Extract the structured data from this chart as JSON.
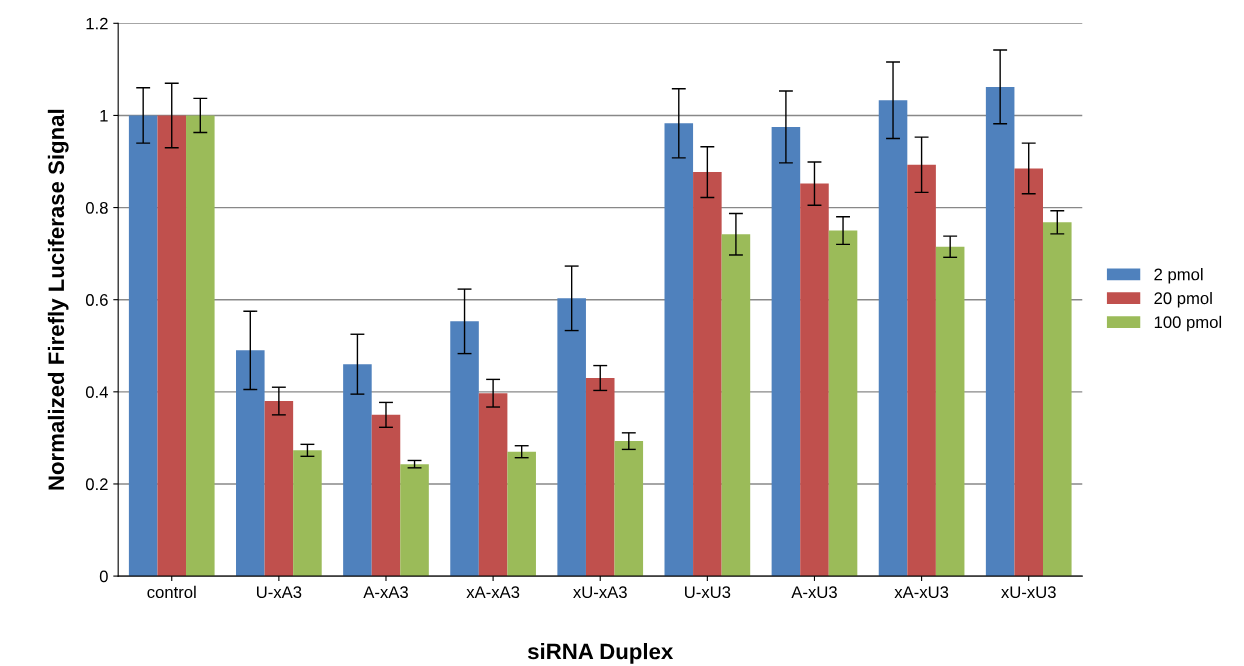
{
  "chart_data": {
    "type": "bar",
    "xlabel": "siRNA Duplex",
    "ylabel": "Normalized Firefly Luciferase Signal",
    "categories": [
      "control",
      "U-xA3",
      "A-xA3",
      "xA-xA3",
      "xU-xA3",
      "U-xU3",
      "A-xU3",
      "xA-xU3",
      "xU-xU3"
    ],
    "series": [
      {
        "name": "2 pmol",
        "color": "#4f81bd",
        "values": [
          1.0,
          0.49,
          0.46,
          0.553,
          0.603,
          0.983,
          0.975,
          1.033,
          1.062
        ],
        "errors": [
          0.06,
          0.085,
          0.065,
          0.07,
          0.07,
          0.075,
          0.078,
          0.083,
          0.08
        ]
      },
      {
        "name": "20 pmol",
        "color": "#c0504d",
        "values": [
          1.0,
          0.38,
          0.35,
          0.397,
          0.43,
          0.877,
          0.852,
          0.893,
          0.885
        ],
        "errors": [
          0.07,
          0.03,
          0.027,
          0.03,
          0.027,
          0.055,
          0.047,
          0.06,
          0.055
        ]
      },
      {
        "name": "100 pmol",
        "color": "#9bbb59",
        "values": [
          1.0,
          0.273,
          0.243,
          0.27,
          0.293,
          0.742,
          0.75,
          0.715,
          0.768
        ],
        "errors": [
          0.037,
          0.013,
          0.008,
          0.013,
          0.018,
          0.045,
          0.03,
          0.023,
          0.025
        ]
      }
    ],
    "ylim": [
      0,
      1.2
    ],
    "yticks": [
      {
        "value": 0,
        "label": "0"
      },
      0.2,
      0.4,
      0.6,
      0.8,
      {
        "value": 1,
        "label": "1"
      },
      1.2
    ],
    "grid": "y",
    "legend": "right"
  }
}
